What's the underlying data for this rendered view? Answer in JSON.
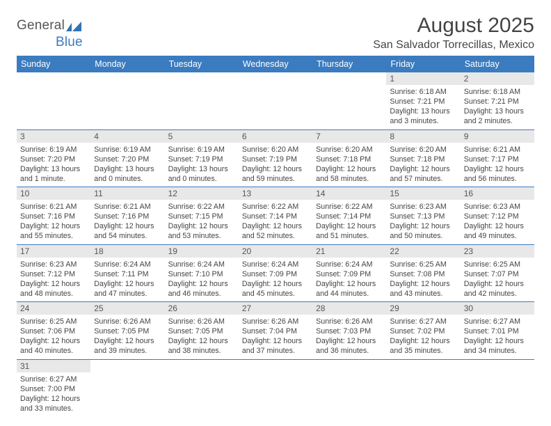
{
  "logo": {
    "general": "General",
    "blue": "Blue"
  },
  "header": {
    "month_title": "August 2025",
    "location": "San Salvador Torrecillas, Mexico"
  },
  "colors": {
    "header_bg": "#3b7bbf",
    "header_fg": "#ffffff",
    "daynum_bg": "#e8e8e8",
    "cell_border": "#3b7bbf"
  },
  "day_labels": [
    "Sunday",
    "Monday",
    "Tuesday",
    "Wednesday",
    "Thursday",
    "Friday",
    "Saturday"
  ],
  "weeks": [
    [
      null,
      null,
      null,
      null,
      null,
      {
        "n": "1",
        "sr": "Sunrise: 6:18 AM",
        "ss": "Sunset: 7:21 PM",
        "dl": "Daylight: 13 hours and 3 minutes."
      },
      {
        "n": "2",
        "sr": "Sunrise: 6:18 AM",
        "ss": "Sunset: 7:21 PM",
        "dl": "Daylight: 13 hours and 2 minutes."
      }
    ],
    [
      {
        "n": "3",
        "sr": "Sunrise: 6:19 AM",
        "ss": "Sunset: 7:20 PM",
        "dl": "Daylight: 13 hours and 1 minute."
      },
      {
        "n": "4",
        "sr": "Sunrise: 6:19 AM",
        "ss": "Sunset: 7:20 PM",
        "dl": "Daylight: 13 hours and 0 minutes."
      },
      {
        "n": "5",
        "sr": "Sunrise: 6:19 AM",
        "ss": "Sunset: 7:19 PM",
        "dl": "Daylight: 13 hours and 0 minutes."
      },
      {
        "n": "6",
        "sr": "Sunrise: 6:20 AM",
        "ss": "Sunset: 7:19 PM",
        "dl": "Daylight: 12 hours and 59 minutes."
      },
      {
        "n": "7",
        "sr": "Sunrise: 6:20 AM",
        "ss": "Sunset: 7:18 PM",
        "dl": "Daylight: 12 hours and 58 minutes."
      },
      {
        "n": "8",
        "sr": "Sunrise: 6:20 AM",
        "ss": "Sunset: 7:18 PM",
        "dl": "Daylight: 12 hours and 57 minutes."
      },
      {
        "n": "9",
        "sr": "Sunrise: 6:21 AM",
        "ss": "Sunset: 7:17 PM",
        "dl": "Daylight: 12 hours and 56 minutes."
      }
    ],
    [
      {
        "n": "10",
        "sr": "Sunrise: 6:21 AM",
        "ss": "Sunset: 7:16 PM",
        "dl": "Daylight: 12 hours and 55 minutes."
      },
      {
        "n": "11",
        "sr": "Sunrise: 6:21 AM",
        "ss": "Sunset: 7:16 PM",
        "dl": "Daylight: 12 hours and 54 minutes."
      },
      {
        "n": "12",
        "sr": "Sunrise: 6:22 AM",
        "ss": "Sunset: 7:15 PM",
        "dl": "Daylight: 12 hours and 53 minutes."
      },
      {
        "n": "13",
        "sr": "Sunrise: 6:22 AM",
        "ss": "Sunset: 7:14 PM",
        "dl": "Daylight: 12 hours and 52 minutes."
      },
      {
        "n": "14",
        "sr": "Sunrise: 6:22 AM",
        "ss": "Sunset: 7:14 PM",
        "dl": "Daylight: 12 hours and 51 minutes."
      },
      {
        "n": "15",
        "sr": "Sunrise: 6:23 AM",
        "ss": "Sunset: 7:13 PM",
        "dl": "Daylight: 12 hours and 50 minutes."
      },
      {
        "n": "16",
        "sr": "Sunrise: 6:23 AM",
        "ss": "Sunset: 7:12 PM",
        "dl": "Daylight: 12 hours and 49 minutes."
      }
    ],
    [
      {
        "n": "17",
        "sr": "Sunrise: 6:23 AM",
        "ss": "Sunset: 7:12 PM",
        "dl": "Daylight: 12 hours and 48 minutes."
      },
      {
        "n": "18",
        "sr": "Sunrise: 6:24 AM",
        "ss": "Sunset: 7:11 PM",
        "dl": "Daylight: 12 hours and 47 minutes."
      },
      {
        "n": "19",
        "sr": "Sunrise: 6:24 AM",
        "ss": "Sunset: 7:10 PM",
        "dl": "Daylight: 12 hours and 46 minutes."
      },
      {
        "n": "20",
        "sr": "Sunrise: 6:24 AM",
        "ss": "Sunset: 7:09 PM",
        "dl": "Daylight: 12 hours and 45 minutes."
      },
      {
        "n": "21",
        "sr": "Sunrise: 6:24 AM",
        "ss": "Sunset: 7:09 PM",
        "dl": "Daylight: 12 hours and 44 minutes."
      },
      {
        "n": "22",
        "sr": "Sunrise: 6:25 AM",
        "ss": "Sunset: 7:08 PM",
        "dl": "Daylight: 12 hours and 43 minutes."
      },
      {
        "n": "23",
        "sr": "Sunrise: 6:25 AM",
        "ss": "Sunset: 7:07 PM",
        "dl": "Daylight: 12 hours and 42 minutes."
      }
    ],
    [
      {
        "n": "24",
        "sr": "Sunrise: 6:25 AM",
        "ss": "Sunset: 7:06 PM",
        "dl": "Daylight: 12 hours and 40 minutes."
      },
      {
        "n": "25",
        "sr": "Sunrise: 6:26 AM",
        "ss": "Sunset: 7:05 PM",
        "dl": "Daylight: 12 hours and 39 minutes."
      },
      {
        "n": "26",
        "sr": "Sunrise: 6:26 AM",
        "ss": "Sunset: 7:05 PM",
        "dl": "Daylight: 12 hours and 38 minutes."
      },
      {
        "n": "27",
        "sr": "Sunrise: 6:26 AM",
        "ss": "Sunset: 7:04 PM",
        "dl": "Daylight: 12 hours and 37 minutes."
      },
      {
        "n": "28",
        "sr": "Sunrise: 6:26 AM",
        "ss": "Sunset: 7:03 PM",
        "dl": "Daylight: 12 hours and 36 minutes."
      },
      {
        "n": "29",
        "sr": "Sunrise: 6:27 AM",
        "ss": "Sunset: 7:02 PM",
        "dl": "Daylight: 12 hours and 35 minutes."
      },
      {
        "n": "30",
        "sr": "Sunrise: 6:27 AM",
        "ss": "Sunset: 7:01 PM",
        "dl": "Daylight: 12 hours and 34 minutes."
      }
    ],
    [
      {
        "n": "31",
        "sr": "Sunrise: 6:27 AM",
        "ss": "Sunset: 7:00 PM",
        "dl": "Daylight: 12 hours and 33 minutes."
      },
      null,
      null,
      null,
      null,
      null,
      null
    ]
  ]
}
